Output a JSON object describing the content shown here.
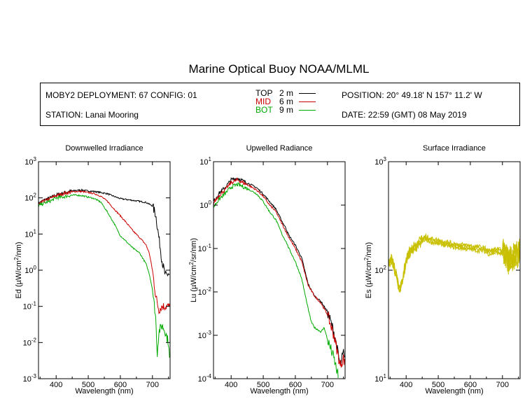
{
  "title": "Marine Optical Buoy NOAA/MLML",
  "info": {
    "deployment": "MOBY2 DEPLOYMENT: 67 CONFIG: 01",
    "station": "STATION: Lanai Mooring",
    "position": "POSITION: 20° 49.18' N   157° 11.2' W",
    "date": "DATE: 22:59 (GMT) 08 May 2019",
    "depths": [
      {
        "name": "TOP",
        "depth": "2",
        "unit": "m",
        "color": "#000000"
      },
      {
        "name": "MID",
        "depth": "6",
        "unit": "m",
        "color": "#cc0000"
      },
      {
        "name": "BOT",
        "depth": "9",
        "unit": "m",
        "color": "#00aa00"
      }
    ]
  },
  "chart_data": [
    {
      "type": "line",
      "title": "Downwelled Irradiance",
      "xlabel": "Wavelength (nm)",
      "ylabel_prefix": "Ed  (µW/cm",
      "ylabel_sup": "2",
      "ylabel_suffix": "/nm)",
      "xlim": [
        345,
        755
      ],
      "ylim": [
        0.001,
        1000
      ],
      "yscale": "log",
      "xticks": [
        400,
        500,
        600,
        700
      ],
      "yticks": [
        {
          "base": "10",
          "exp": "-3",
          "v": 0.001
        },
        {
          "base": "10",
          "exp": "-2",
          "v": 0.01
        },
        {
          "base": "10",
          "exp": "-1",
          "v": 0.1
        },
        {
          "base": "10",
          "exp": "0",
          "v": 1
        },
        {
          "base": "10",
          "exp": "1",
          "v": 10
        },
        {
          "base": "10",
          "exp": "2",
          "v": 100
        },
        {
          "base": "10",
          "exp": "3",
          "v": 1000
        }
      ],
      "series": [
        {
          "color": "#000000",
          "x": [
            345,
            360,
            380,
            400,
            420,
            440,
            460,
            480,
            500,
            520,
            540,
            560,
            580,
            600,
            620,
            640,
            660,
            680,
            700,
            710,
            720,
            730,
            740,
            750,
            755
          ],
          "y": [
            70,
            85,
            100,
            120,
            135,
            150,
            160,
            165,
            155,
            150,
            140,
            130,
            110,
            95,
            90,
            85,
            80,
            75,
            60,
            35,
            8,
            1.8,
            0.7,
            0.8,
            0.7
          ]
        },
        {
          "color": "#cc0000",
          "x": [
            345,
            360,
            380,
            400,
            420,
            440,
            460,
            480,
            500,
            520,
            540,
            560,
            580,
            600,
            620,
            640,
            660,
            680,
            690,
            700,
            710,
            720,
            730,
            740,
            750,
            755
          ],
          "y": [
            65,
            80,
            95,
            115,
            130,
            140,
            150,
            150,
            140,
            130,
            110,
            80,
            50,
            32,
            20,
            12,
            8,
            5,
            3,
            1,
            0.2,
            0.08,
            0.1,
            0.1,
            0.1,
            0.09
          ]
        },
        {
          "color": "#00aa00",
          "x": [
            345,
            360,
            380,
            400,
            420,
            440,
            460,
            480,
            500,
            520,
            540,
            560,
            580,
            600,
            620,
            640,
            660,
            680,
            690,
            700,
            710,
            715,
            720,
            730,
            740,
            750,
            755
          ],
          "y": [
            60,
            70,
            80,
            100,
            105,
            115,
            120,
            115,
            105,
            95,
            75,
            40,
            20,
            9,
            6,
            4,
            3,
            1.5,
            0.8,
            0.3,
            0.05,
            0.005,
            0.02,
            0.03,
            0.02,
            0.01,
            0.002
          ]
        }
      ]
    },
    {
      "type": "line",
      "title": "Upwelled Radiance",
      "xlabel": "Wavelength (nm)",
      "ylabel_prefix": "Lu  (µW/cm",
      "ylabel_sup": "2",
      "ylabel_suffix": "/sr/nm)",
      "xlim": [
        345,
        755
      ],
      "ylim": [
        0.0001,
        10
      ],
      "yscale": "log",
      "xticks": [
        400,
        500,
        600,
        700
      ],
      "yticks": [
        {
          "base": "10",
          "exp": "-4",
          "v": 0.0001
        },
        {
          "base": "10",
          "exp": "-3",
          "v": 0.001
        },
        {
          "base": "10",
          "exp": "-2",
          "v": 0.01
        },
        {
          "base": "10",
          "exp": "-1",
          "v": 0.1
        },
        {
          "base": "10",
          "exp": "0",
          "v": 1
        },
        {
          "base": "10",
          "exp": "1",
          "v": 10
        }
      ],
      "series": [
        {
          "color": "#000000",
          "x": [
            345,
            360,
            380,
            400,
            420,
            440,
            460,
            480,
            500,
            520,
            540,
            560,
            570,
            580,
            600,
            620,
            640,
            660,
            680,
            700,
            720,
            740,
            750,
            755
          ],
          "y": [
            1.2,
            1.8,
            2.5,
            3.8,
            4.2,
            3.5,
            3.0,
            2.5,
            1.8,
            1.2,
            0.8,
            0.4,
            0.3,
            0.2,
            0.12,
            0.06,
            0.015,
            0.008,
            0.006,
            0.0035,
            0.0012,
            0.0002,
            0.0004,
            0.0002
          ]
        },
        {
          "color": "#cc0000",
          "x": [
            345,
            360,
            380,
            400,
            420,
            440,
            460,
            480,
            500,
            520,
            540,
            560,
            570,
            580,
            600,
            620,
            640,
            660,
            680,
            700,
            720,
            740,
            750,
            755
          ],
          "y": [
            1.1,
            1.6,
            2.2,
            3.3,
            3.8,
            3.2,
            2.7,
            2.2,
            1.6,
            1.0,
            0.7,
            0.35,
            0.25,
            0.18,
            0.1,
            0.05,
            0.014,
            0.008,
            0.0055,
            0.003,
            0.001,
            0.0002,
            0.0003,
            0.0002
          ]
        },
        {
          "color": "#00aa00",
          "x": [
            345,
            360,
            380,
            400,
            420,
            440,
            460,
            480,
            500,
            520,
            540,
            560,
            570,
            580,
            600,
            620,
            640,
            650,
            660,
            680,
            690,
            700,
            720,
            735
          ],
          "y": [
            0.9,
            1.3,
            1.8,
            2.6,
            3.0,
            2.6,
            2.2,
            1.8,
            1.2,
            0.7,
            0.45,
            0.2,
            0.15,
            0.1,
            0.05,
            0.02,
            0.004,
            0.002,
            0.0015,
            0.0012,
            0.0015,
            0.0008,
            0.0003,
            0.0001
          ]
        }
      ]
    },
    {
      "type": "line",
      "title": "Surface Irradiance",
      "xlabel": "Wavelength (nm)",
      "ylabel_prefix": "Es  (µW/cm",
      "ylabel_sup": "2",
      "ylabel_suffix": "/nm)",
      "xlim": [
        345,
        755
      ],
      "ylim": [
        10,
        1000
      ],
      "yscale": "log",
      "xticks": [
        400,
        500,
        600,
        700
      ],
      "yticks": [
        {
          "base": "10",
          "exp": "1",
          "v": 10
        },
        {
          "base": "10",
          "exp": "2",
          "v": 100
        },
        {
          "base": "10",
          "exp": "3",
          "v": 1000
        }
      ],
      "series": [
        {
          "color": "#c8c000",
          "x": [
            345,
            355,
            365,
            370,
            375,
            380,
            390,
            400,
            410,
            420,
            430,
            440,
            450,
            460,
            470,
            480,
            500,
            520,
            540,
            560,
            580,
            600,
            620,
            640,
            660,
            680,
            700,
            710,
            720,
            730,
            740,
            750,
            755
          ],
          "y": [
            110,
            120,
            95,
            90,
            70,
            65,
            80,
            120,
            140,
            150,
            160,
            170,
            180,
            190,
            185,
            180,
            175,
            170,
            165,
            160,
            158,
            155,
            152,
            150,
            140,
            145,
            140,
            125,
            120,
            128,
            130,
            135,
            138
          ]
        }
      ]
    }
  ]
}
